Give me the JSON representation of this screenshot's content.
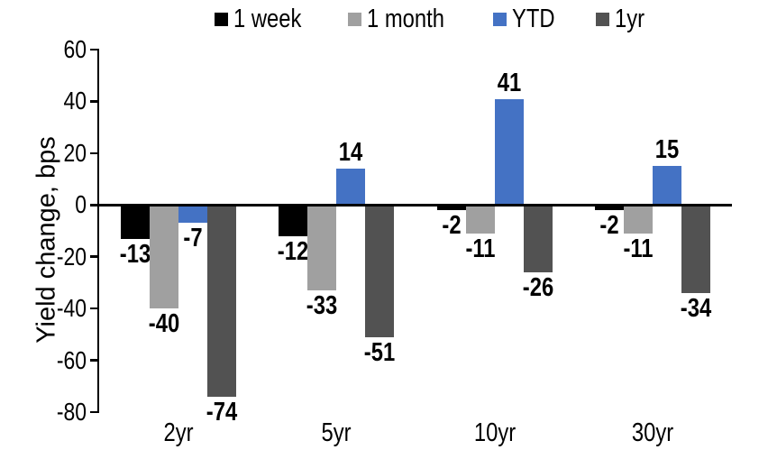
{
  "chart_data": {
    "type": "bar",
    "ylabel": "Yield change, bps",
    "categories": [
      "2yr",
      "5yr",
      "10yr",
      "30yr"
    ],
    "series": [
      {
        "name": "1 week",
        "color": "#000000",
        "values": [
          -13,
          -12,
          -2,
          -2
        ]
      },
      {
        "name": "1 month",
        "color": "#A0A0A0",
        "values": [
          -40,
          -33,
          -11,
          -11
        ]
      },
      {
        "name": "YTD",
        "color": "#4472C4",
        "values": [
          -7,
          14,
          41,
          15
        ]
      },
      {
        "name": "1yr",
        "color": "#525252",
        "values": [
          -74,
          -51,
          -26,
          -34
        ]
      }
    ],
    "ylim": [
      -80,
      60
    ],
    "yticks": [
      60,
      40,
      20,
      0,
      -20,
      -40,
      -60,
      -80
    ],
    "legend_position": "top",
    "grid": false,
    "axis_color": "#000000"
  }
}
